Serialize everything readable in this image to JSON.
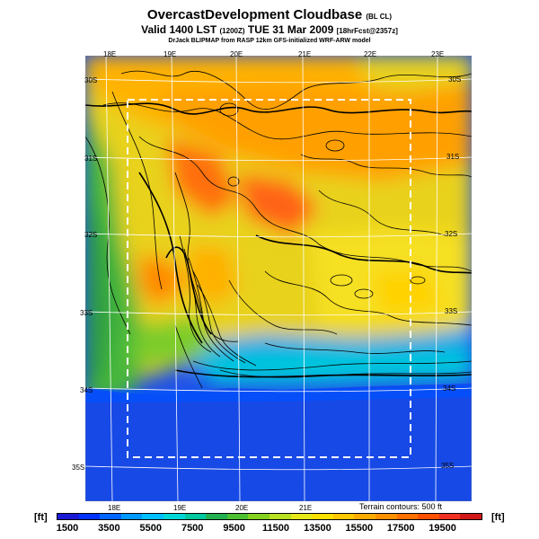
{
  "title": {
    "main": "OvercastDevelopment Cloudbase",
    "tag": "(BL CL)"
  },
  "subtitle": {
    "main": "Valid 1400 LST",
    "code": "(1200Z)",
    "date": "TUE 31 Mar 2009",
    "run": "[18hrFcst@2357z]"
  },
  "credit": "DrJack BLIPMAP from RASP 12km GFS-initialized WRF-ARW model",
  "lon_labels_top": [
    "18E",
    "19E",
    "20E",
    "21E",
    "22E",
    "23E"
  ],
  "lon_labels_bottom": [
    "18E",
    "19E",
    "20E",
    "21E"
  ],
  "lat_labels_left": [
    "30S",
    "31S",
    "32S",
    "33S",
    "34S",
    "35S"
  ],
  "lat_labels_right": [
    "30S",
    "31S",
    "32S",
    "33S",
    "34S",
    "35S"
  ],
  "terrain_note": "Terrain contours: 500 ft",
  "colorbar": {
    "unit_left": "[ft]",
    "unit_right": "[ft]",
    "ticks": [
      "1500",
      "3500",
      "5500",
      "7500",
      "9500",
      "11500",
      "13500",
      "15500",
      "17500",
      "19500"
    ],
    "colors": [
      "#1a1ad6",
      "#0033ff",
      "#0066ff",
      "#0099ff",
      "#00c0ff",
      "#00d8d8",
      "#00c8a0",
      "#22b050",
      "#4cc030",
      "#86d020",
      "#b8e020",
      "#e6e81a",
      "#ffe000",
      "#ffc800",
      "#ffac00",
      "#ff9000",
      "#ff7000",
      "#ff5000",
      "#f03020",
      "#d01818"
    ]
  }
}
